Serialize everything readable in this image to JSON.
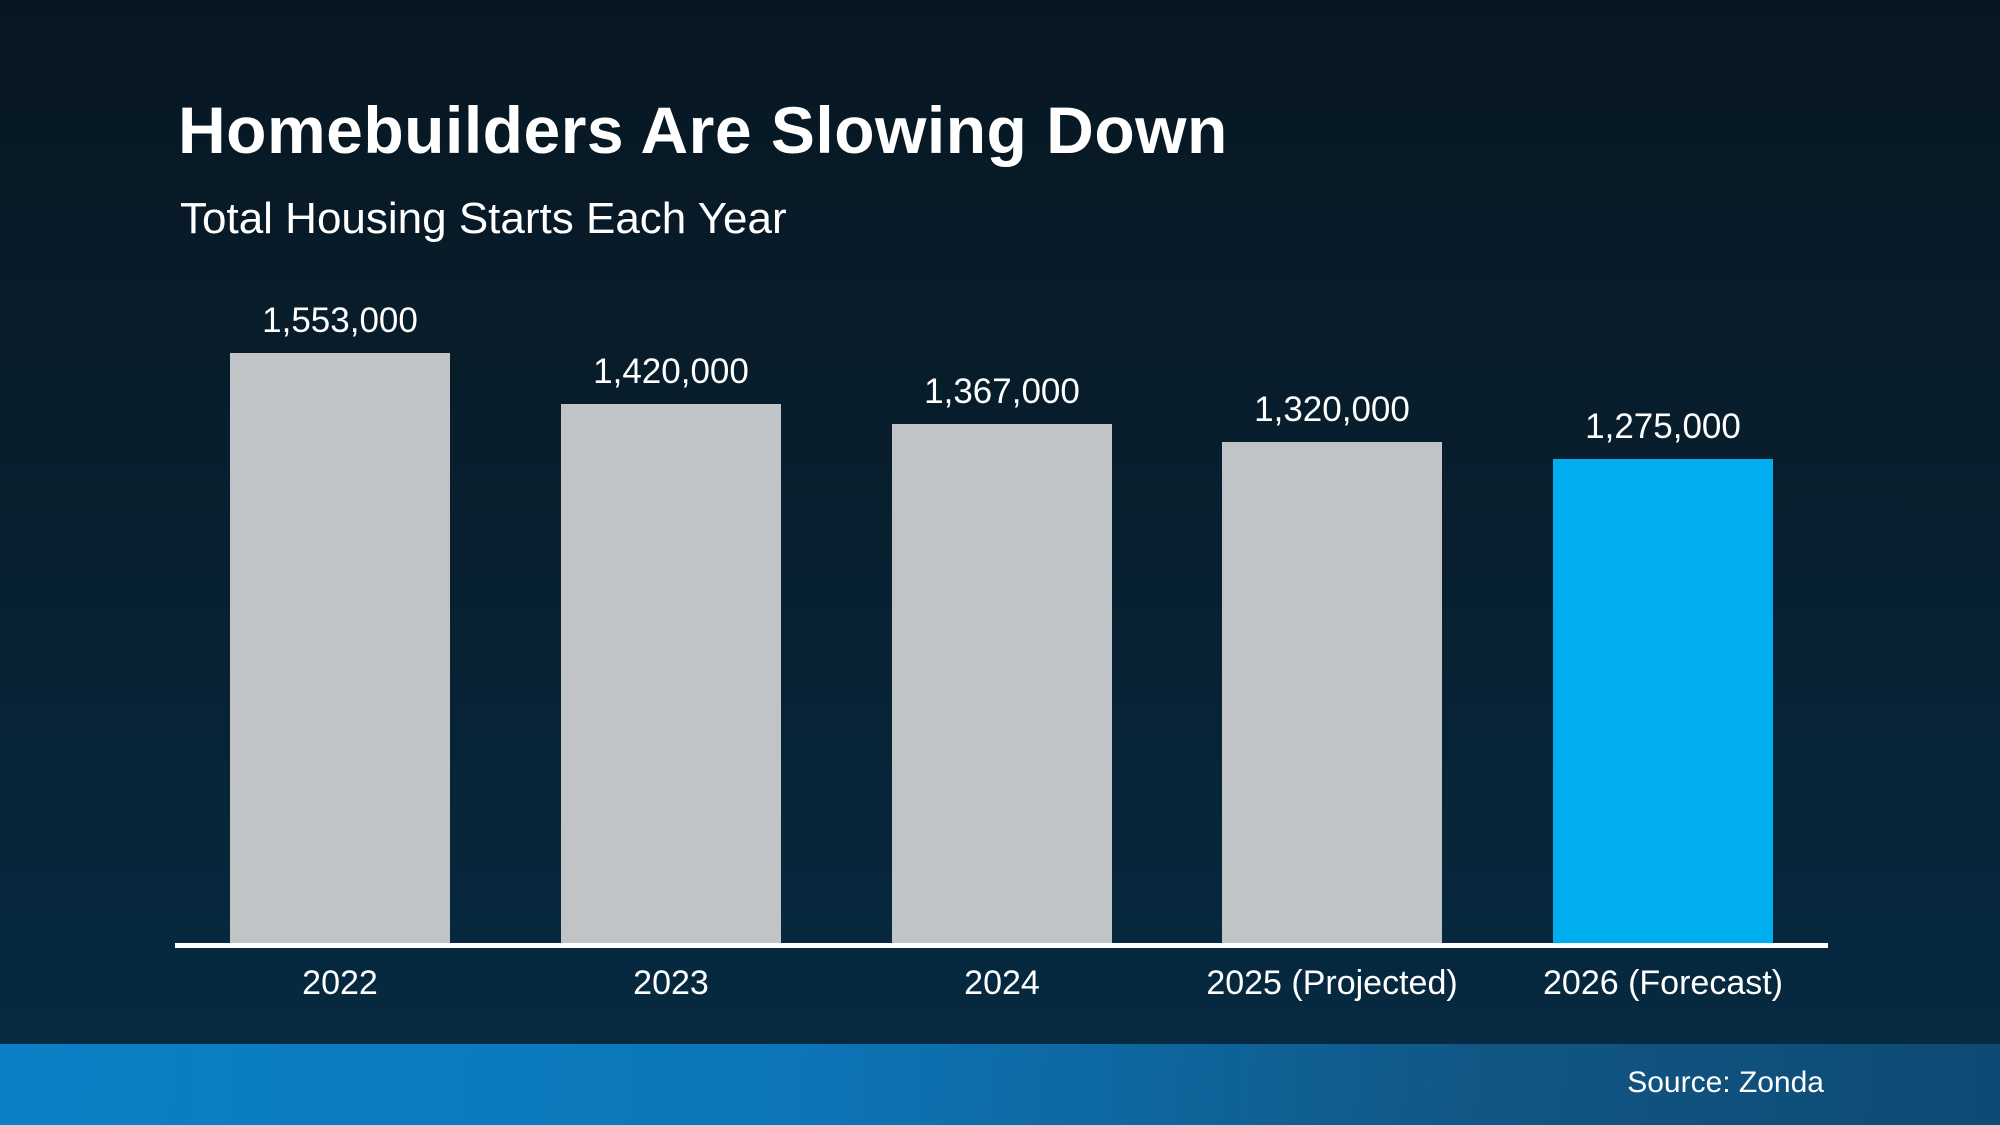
{
  "header": {
    "title": "Homebuilders Are Slowing Down",
    "subtitle": "Total Housing Starts Each Year"
  },
  "footer": {
    "source": "Source: Zonda"
  },
  "colors": {
    "background_top": "#071722",
    "background_bottom": "#052a42",
    "bar_default": "#c1c4c6",
    "bar_highlight": "#00aeef",
    "axis_line": "#ffffff",
    "text": "#ffffff",
    "strip_left": "#0b80c6",
    "strip_right": "#0d4a74"
  },
  "chart_data": {
    "type": "bar",
    "title": "Homebuilders Are Slowing Down",
    "subtitle": "Total Housing Starts Each Year",
    "xlabel": "",
    "ylabel": "",
    "ylim": [
      0,
      1600000
    ],
    "grid": false,
    "legend": "none",
    "categories": [
      "2022",
      "2023",
      "2024",
      "2025 (Projected)",
      "2026 (Forecast)"
    ],
    "values": [
      1553000,
      1420000,
      1367000,
      1320000,
      1275000
    ],
    "value_labels": [
      "1,553,000",
      "1,420,000",
      "1,367,000",
      "1,320,000",
      "1,275,000"
    ],
    "highlighted": [
      false,
      false,
      false,
      false,
      true
    ],
    "annotations": [],
    "source": "Source: Zonda"
  }
}
